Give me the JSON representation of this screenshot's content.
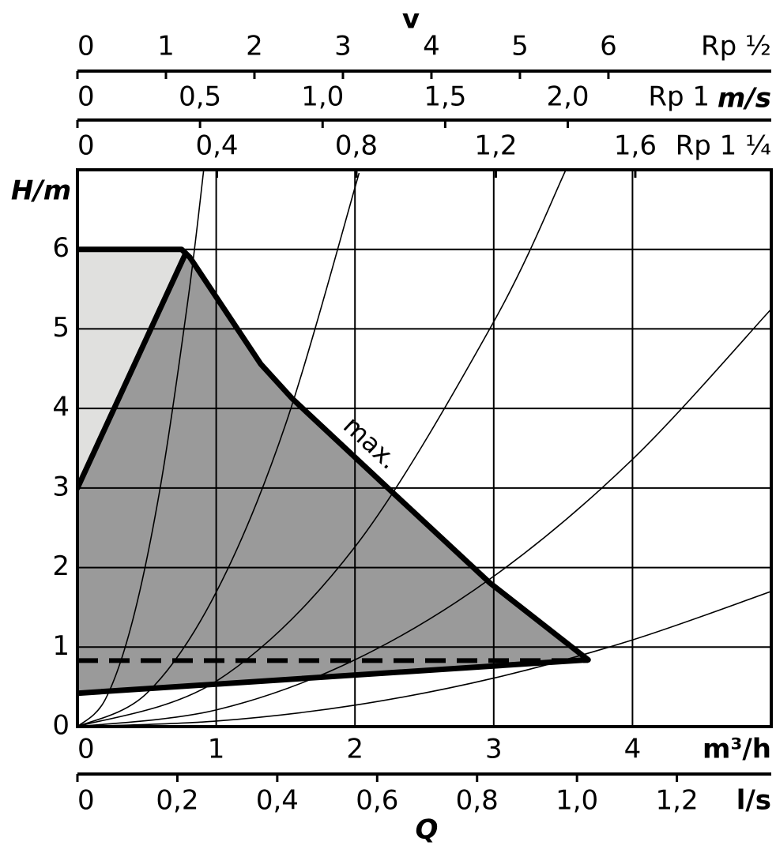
{
  "chart_data": {
    "type": "line",
    "velocity_title": "v",
    "velocity_unit": "m/s",
    "y_label": "H/m",
    "x_label": "Q",
    "x_unit": "m³/h",
    "xlim": [
      0,
      5
    ],
    "xticks": [
      0,
      1,
      2,
      3,
      4
    ],
    "ylim": [
      0,
      7
    ],
    "yticks": [
      0,
      1,
      2,
      3,
      4,
      5,
      6
    ],
    "grid": true,
    "flow_axis": {
      "unit": "l/s",
      "xlim": [
        0,
        1.3889
      ],
      "xticks": [
        0,
        {
          "value": 0.2,
          "label": "0,2"
        },
        {
          "value": 0.4,
          "label": "0,4"
        },
        {
          "value": 0.6,
          "label": "0,6"
        },
        {
          "value": 0.8,
          "label": "0,8"
        },
        {
          "value": 1.0,
          "label": "1,0"
        },
        {
          "value": 1.2,
          "label": "1,2"
        }
      ]
    },
    "velocity_axes": [
      {
        "name": "Rp ½",
        "xlim": [
          0,
          7.84
        ],
        "xticks": [
          0,
          1,
          2,
          3,
          4,
          5,
          6
        ]
      },
      {
        "name": "Rp 1",
        "xlim": [
          0,
          2.83
        ],
        "xticks": [
          0,
          {
            "value": 0.5,
            "label": "0,5"
          },
          {
            "value": 1.0,
            "label": "1,0"
          },
          {
            "value": 1.5,
            "label": "1,5"
          },
          {
            "value": 2.0,
            "label": "2,0"
          }
        ]
      },
      {
        "name": "Rp 1 ¼",
        "xlim": [
          0,
          1.99
        ],
        "xticks": [
          0,
          {
            "value": 0.4,
            "label": "0,4"
          },
          {
            "value": 0.8,
            "label": "0,8"
          },
          {
            "value": 1.2,
            "label": "1,2"
          },
          {
            "value": 1.6,
            "label": "1,6"
          }
        ]
      }
    ],
    "light_area": {
      "color": "#e0e0de",
      "x": [
        0,
        0.75,
        0.78,
        0
      ],
      "values": [
        6,
        6,
        5.95,
        3
      ]
    },
    "operating_area": {
      "color": "#9a9a9a",
      "x": [
        0,
        0.78,
        1.32,
        1.55,
        2.28,
        2.97,
        3.68,
        0
      ],
      "values": [
        3,
        5.95,
        4.56,
        4.12,
        2.93,
        1.81,
        0.84,
        0.42
      ]
    },
    "series": [
      {
        "name": "max.",
        "color": "#000000",
        "x": [
          0,
          0.75,
          0.81,
          1.32,
          1.55,
          2.28,
          2.97,
          3.68
        ],
        "values": [
          6,
          6,
          5.9,
          4.56,
          4.12,
          2.93,
          1.81,
          0.84
        ]
      },
      {
        "color": "#000000",
        "x": [
          0,
          0.78
        ],
        "values": [
          3,
          5.95
        ]
      },
      {
        "color": "#000000",
        "x": [
          0,
          3.68
        ],
        "values": [
          0.42,
          0.84
        ]
      },
      {
        "color": "#000000",
        "dashed": true,
        "x": [
          0,
          3.68
        ],
        "values": [
          0.83,
          0.83
        ]
      }
    ],
    "system_curves": [
      {
        "x": [
          0,
          0.2,
          0.4,
          0.6,
          0.8,
          0.91
        ],
        "values": [
          0,
          0.34,
          1.35,
          3.04,
          5.41,
          7.0
        ]
      },
      {
        "x": [
          0,
          0.5,
          1,
          1.5,
          2.03
        ],
        "values": [
          0,
          0.42,
          1.69,
          3.8,
          6.96
        ]
      },
      {
        "x": [
          0,
          1,
          2,
          3,
          3.52
        ],
        "values": [
          0,
          0.57,
          2.26,
          5.09,
          7.0
        ]
      },
      {
        "x": [
          0,
          1,
          2,
          3,
          4,
          5
        ],
        "values": [
          0,
          0.21,
          0.84,
          1.89,
          3.36,
          5.25
        ]
      },
      {
        "x": [
          0,
          1,
          2,
          3,
          4,
          5
        ],
        "values": [
          0,
          0.07,
          0.27,
          0.61,
          1.09,
          1.7
        ]
      }
    ]
  }
}
